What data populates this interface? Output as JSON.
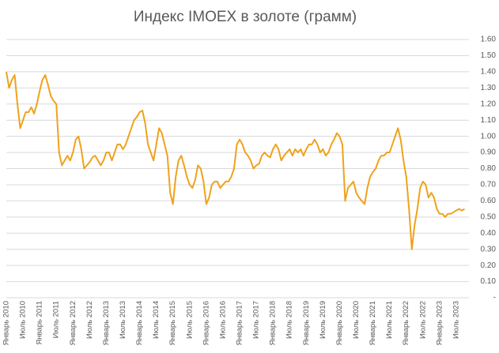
{
  "chart_data": {
    "type": "line",
    "title": "Индекс IMOEX в золоте (грамм)",
    "x": [
      "2010-01",
      "2010-02",
      "2010-03",
      "2010-04",
      "2010-05",
      "2010-06",
      "2010-07",
      "2010-08",
      "2010-09",
      "2010-10",
      "2010-11",
      "2010-12",
      "2011-01",
      "2011-02",
      "2011-03",
      "2011-04",
      "2011-05",
      "2011-06",
      "2011-07",
      "2011-08",
      "2011-09",
      "2011-10",
      "2011-11",
      "2011-12",
      "2012-01",
      "2012-02",
      "2012-03",
      "2012-04",
      "2012-05",
      "2012-06",
      "2012-07",
      "2012-08",
      "2012-09",
      "2012-10",
      "2012-11",
      "2012-12",
      "2013-01",
      "2013-02",
      "2013-03",
      "2013-04",
      "2013-05",
      "2013-06",
      "2013-07",
      "2013-08",
      "2013-09",
      "2013-10",
      "2013-11",
      "2013-12",
      "2014-01",
      "2014-02",
      "2014-03",
      "2014-04",
      "2014-05",
      "2014-06",
      "2014-07",
      "2014-08",
      "2014-09",
      "2014-10",
      "2014-11",
      "2014-12",
      "2015-01",
      "2015-02",
      "2015-03",
      "2015-04",
      "2015-05",
      "2015-06",
      "2015-07",
      "2015-08",
      "2015-09",
      "2015-10",
      "2015-11",
      "2015-12",
      "2016-01",
      "2016-02",
      "2016-03",
      "2016-04",
      "2016-05",
      "2016-06",
      "2016-07",
      "2016-08",
      "2016-09",
      "2016-10",
      "2016-11",
      "2016-12",
      "2017-01",
      "2017-02",
      "2017-03",
      "2017-04",
      "2017-05",
      "2017-06",
      "2017-07",
      "2017-08",
      "2017-09",
      "2017-10",
      "2017-11",
      "2017-12",
      "2018-01",
      "2018-02",
      "2018-03",
      "2018-04",
      "2018-05",
      "2018-06",
      "2018-07",
      "2018-08",
      "2018-09",
      "2018-10",
      "2018-11",
      "2018-12",
      "2019-01",
      "2019-02",
      "2019-03",
      "2019-04",
      "2019-05",
      "2019-06",
      "2019-07",
      "2019-08",
      "2019-09",
      "2019-10",
      "2019-11",
      "2019-12",
      "2020-01",
      "2020-02",
      "2020-03",
      "2020-04",
      "2020-05",
      "2020-06",
      "2020-07",
      "2020-08",
      "2020-09",
      "2020-10",
      "2020-11",
      "2020-12",
      "2021-01",
      "2021-02",
      "2021-03",
      "2021-04",
      "2021-05",
      "2021-06",
      "2021-07",
      "2021-08",
      "2021-09",
      "2021-10",
      "2021-11",
      "2021-12",
      "2022-01",
      "2022-02",
      "2022-03",
      "2022-04",
      "2022-05",
      "2022-06",
      "2022-07",
      "2022-08",
      "2022-09",
      "2022-10",
      "2022-11",
      "2022-12",
      "2023-01",
      "2023-02",
      "2023-03",
      "2023-04",
      "2023-05",
      "2023-06",
      "2023-07",
      "2023-08",
      "2023-09",
      "2023-10"
    ],
    "series": [
      {
        "color": "#f0a21c",
        "values": [
          1.4,
          1.3,
          1.35,
          1.38,
          1.2,
          1.05,
          1.1,
          1.15,
          1.15,
          1.18,
          1.14,
          1.2,
          1.28,
          1.35,
          1.38,
          1.32,
          1.25,
          1.22,
          1.2,
          0.9,
          0.82,
          0.85,
          0.88,
          0.85,
          0.9,
          0.98,
          1.0,
          0.92,
          0.8,
          0.82,
          0.84,
          0.87,
          0.88,
          0.85,
          0.82,
          0.85,
          0.9,
          0.9,
          0.85,
          0.9,
          0.95,
          0.95,
          0.92,
          0.95,
          1.0,
          1.05,
          1.1,
          1.12,
          1.15,
          1.16,
          1.08,
          0.95,
          0.9,
          0.85,
          0.95,
          1.05,
          1.02,
          0.95,
          0.88,
          0.65,
          0.58,
          0.75,
          0.85,
          0.88,
          0.82,
          0.75,
          0.7,
          0.68,
          0.73,
          0.82,
          0.8,
          0.72,
          0.58,
          0.62,
          0.7,
          0.72,
          0.72,
          0.68,
          0.7,
          0.72,
          0.72,
          0.75,
          0.8,
          0.95,
          0.98,
          0.95,
          0.9,
          0.88,
          0.85,
          0.8,
          0.82,
          0.83,
          0.88,
          0.9,
          0.88,
          0.87,
          0.92,
          0.95,
          0.92,
          0.85,
          0.88,
          0.9,
          0.92,
          0.88,
          0.92,
          0.9,
          0.92,
          0.88,
          0.92,
          0.95,
          0.95,
          0.98,
          0.95,
          0.9,
          0.92,
          0.88,
          0.9,
          0.95,
          0.98,
          1.02,
          1.0,
          0.95,
          0.6,
          0.68,
          0.7,
          0.72,
          0.65,
          0.62,
          0.6,
          0.58,
          0.68,
          0.75,
          0.78,
          0.8,
          0.85,
          0.88,
          0.88,
          0.9,
          0.9,
          0.95,
          1.0,
          1.05,
          0.98,
          0.85,
          0.75,
          0.55,
          0.3,
          0.45,
          0.55,
          0.68,
          0.72,
          0.7,
          0.62,
          0.65,
          0.62,
          0.55,
          0.52,
          0.52,
          0.5,
          0.52,
          0.52,
          0.53,
          0.54,
          0.55,
          0.54,
          0.55
        ]
      }
    ],
    "xticks": [
      {
        "value": "2010-01",
        "label": "Январь 2010"
      },
      {
        "value": "2010-07",
        "label": "Июль 2010"
      },
      {
        "value": "2011-01",
        "label": "Январь 2011"
      },
      {
        "value": "2011-07",
        "label": "Июль 2011"
      },
      {
        "value": "2012-01",
        "label": "Январь 2012"
      },
      {
        "value": "2012-07",
        "label": "Июль 2012"
      },
      {
        "value": "2013-01",
        "label": "Январь 2013"
      },
      {
        "value": "2013-07",
        "label": "Июль 2013"
      },
      {
        "value": "2014-01",
        "label": "Январь 2014"
      },
      {
        "value": "2014-07",
        "label": "Июль 2014"
      },
      {
        "value": "2015-01",
        "label": "Январь 2015"
      },
      {
        "value": "2015-07",
        "label": "Июль 2015"
      },
      {
        "value": "2016-01",
        "label": "Январь 2016"
      },
      {
        "value": "2016-07",
        "label": "Июль 2016"
      },
      {
        "value": "2017-01",
        "label": "Январь 2017"
      },
      {
        "value": "2017-07",
        "label": "Июль 2017"
      },
      {
        "value": "2018-01",
        "label": "Январь 2018"
      },
      {
        "value": "2018-07",
        "label": "Июль 2018"
      },
      {
        "value": "2019-01",
        "label": "Январь 2019"
      },
      {
        "value": "2019-07",
        "label": "Июль 2019"
      },
      {
        "value": "2020-01",
        "label": "Январь 2020"
      },
      {
        "value": "2020-07",
        "label": "Июль 2020"
      },
      {
        "value": "2021-01",
        "label": "Январь 2021"
      },
      {
        "value": "2021-07",
        "label": "Июль 2021"
      },
      {
        "value": "2022-01",
        "label": "Январь 2022"
      },
      {
        "value": "2022-07",
        "label": "Июль 2022"
      },
      {
        "value": "2023-01",
        "label": "Январь 2023"
      },
      {
        "value": "2023-07",
        "label": "Июль 2023"
      }
    ],
    "ylim": [
      0,
      1.6
    ],
    "yticks": [
      {
        "value": 0,
        "label": "-"
      },
      {
        "value": 0.1,
        "label": "0.10"
      },
      {
        "value": 0.2,
        "label": "0.20"
      },
      {
        "value": 0.3,
        "label": "0.30"
      },
      {
        "value": 0.4,
        "label": "0.40"
      },
      {
        "value": 0.5,
        "label": "0.50"
      },
      {
        "value": 0.6,
        "label": "0.60"
      },
      {
        "value": 0.7,
        "label": "0.70"
      },
      {
        "value": 0.8,
        "label": "0.80"
      },
      {
        "value": 0.9,
        "label": "0.90"
      },
      {
        "value": 1.0,
        "label": "1.00"
      },
      {
        "value": 1.1,
        "label": "1.10"
      },
      {
        "value": 1.2,
        "label": "1.20"
      },
      {
        "value": 1.3,
        "label": "1.30"
      },
      {
        "value": 1.4,
        "label": "1.40"
      },
      {
        "value": 1.5,
        "label": "1.50"
      },
      {
        "value": 1.6,
        "label": "1.60"
      }
    ],
    "y_axis_side": "right",
    "grid": true
  }
}
